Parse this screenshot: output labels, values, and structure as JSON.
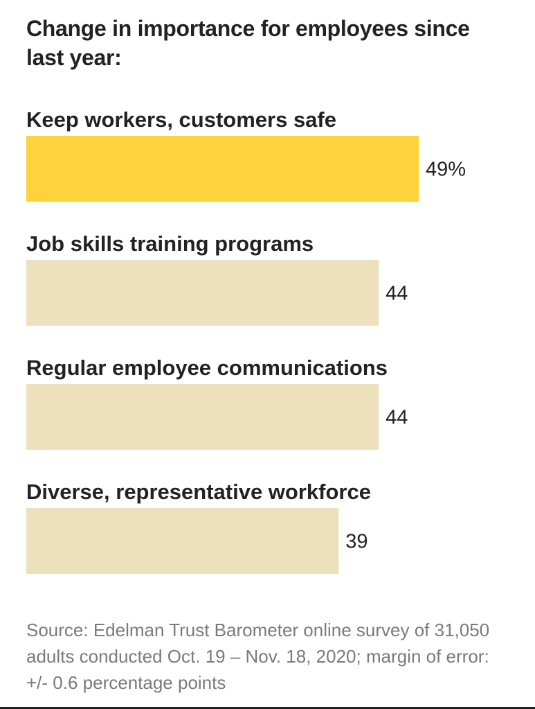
{
  "title": "Change in importance for employees since last year:",
  "source": "Source: Edelman Trust Barometer online survey of 31,050 adults conducted Oct. 19 – Nov. 18, 2020; margin of error: +/- 0.6 percentage points",
  "chart_data": {
    "type": "bar",
    "orientation": "horizontal",
    "title": "Change in importance for employees since last year:",
    "categories": [
      "Keep workers, customers safe",
      "Job skills training programs",
      "Regular employee communications",
      "Diverse, representative workforce"
    ],
    "values": [
      49,
      44,
      44,
      39
    ],
    "value_labels": [
      "49%",
      "44",
      "44",
      "39"
    ],
    "xlim": [
      0,
      49
    ],
    "grid": false,
    "colors": {
      "highlight": "#fdd23a",
      "default": "#ede0bd"
    }
  }
}
